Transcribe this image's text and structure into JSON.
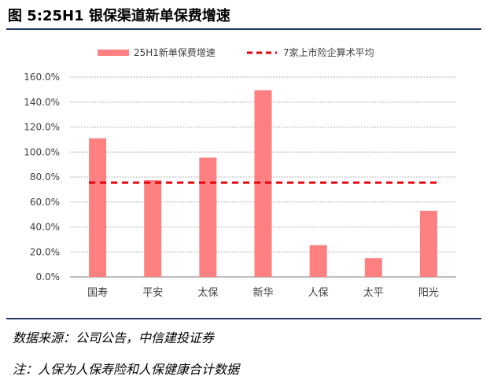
{
  "figure": {
    "title": "图 5:25H1 银保渠道新单保费增速",
    "source": "数据来源：公司公告，中信建投证券",
    "note": "注：人保为人保寿险和人保健康合计数据"
  },
  "colors": {
    "bar": "#ff8080",
    "avg_line": "#e8000b",
    "rule": "#1f3864",
    "grid": "#a6a6a6"
  },
  "chart_data": {
    "type": "bar",
    "title": "",
    "xlabel": "",
    "ylabel": "",
    "categories": [
      "国寿",
      "平安",
      "太保",
      "新华",
      "人保",
      "太平",
      "阳光"
    ],
    "series": [
      {
        "name": "25H1新单保费增速",
        "kind": "bar",
        "values": [
          111.0,
          77.5,
          95.5,
          149.5,
          25.5,
          15.0,
          53.0
        ]
      },
      {
        "name": "7家上市险企算术平均",
        "kind": "line",
        "style": "dashed",
        "values": [
          75.5,
          75.5,
          75.5,
          75.5,
          75.5,
          75.5,
          75.5
        ]
      }
    ],
    "ylim": [
      0,
      160
    ],
    "yticks": [
      "0.0%",
      "20.0%",
      "40.0%",
      "60.0%",
      "80.0%",
      "100.0%",
      "120.0%",
      "140.0%",
      "160.0%"
    ],
    "grid": true,
    "legend": "top-center"
  }
}
